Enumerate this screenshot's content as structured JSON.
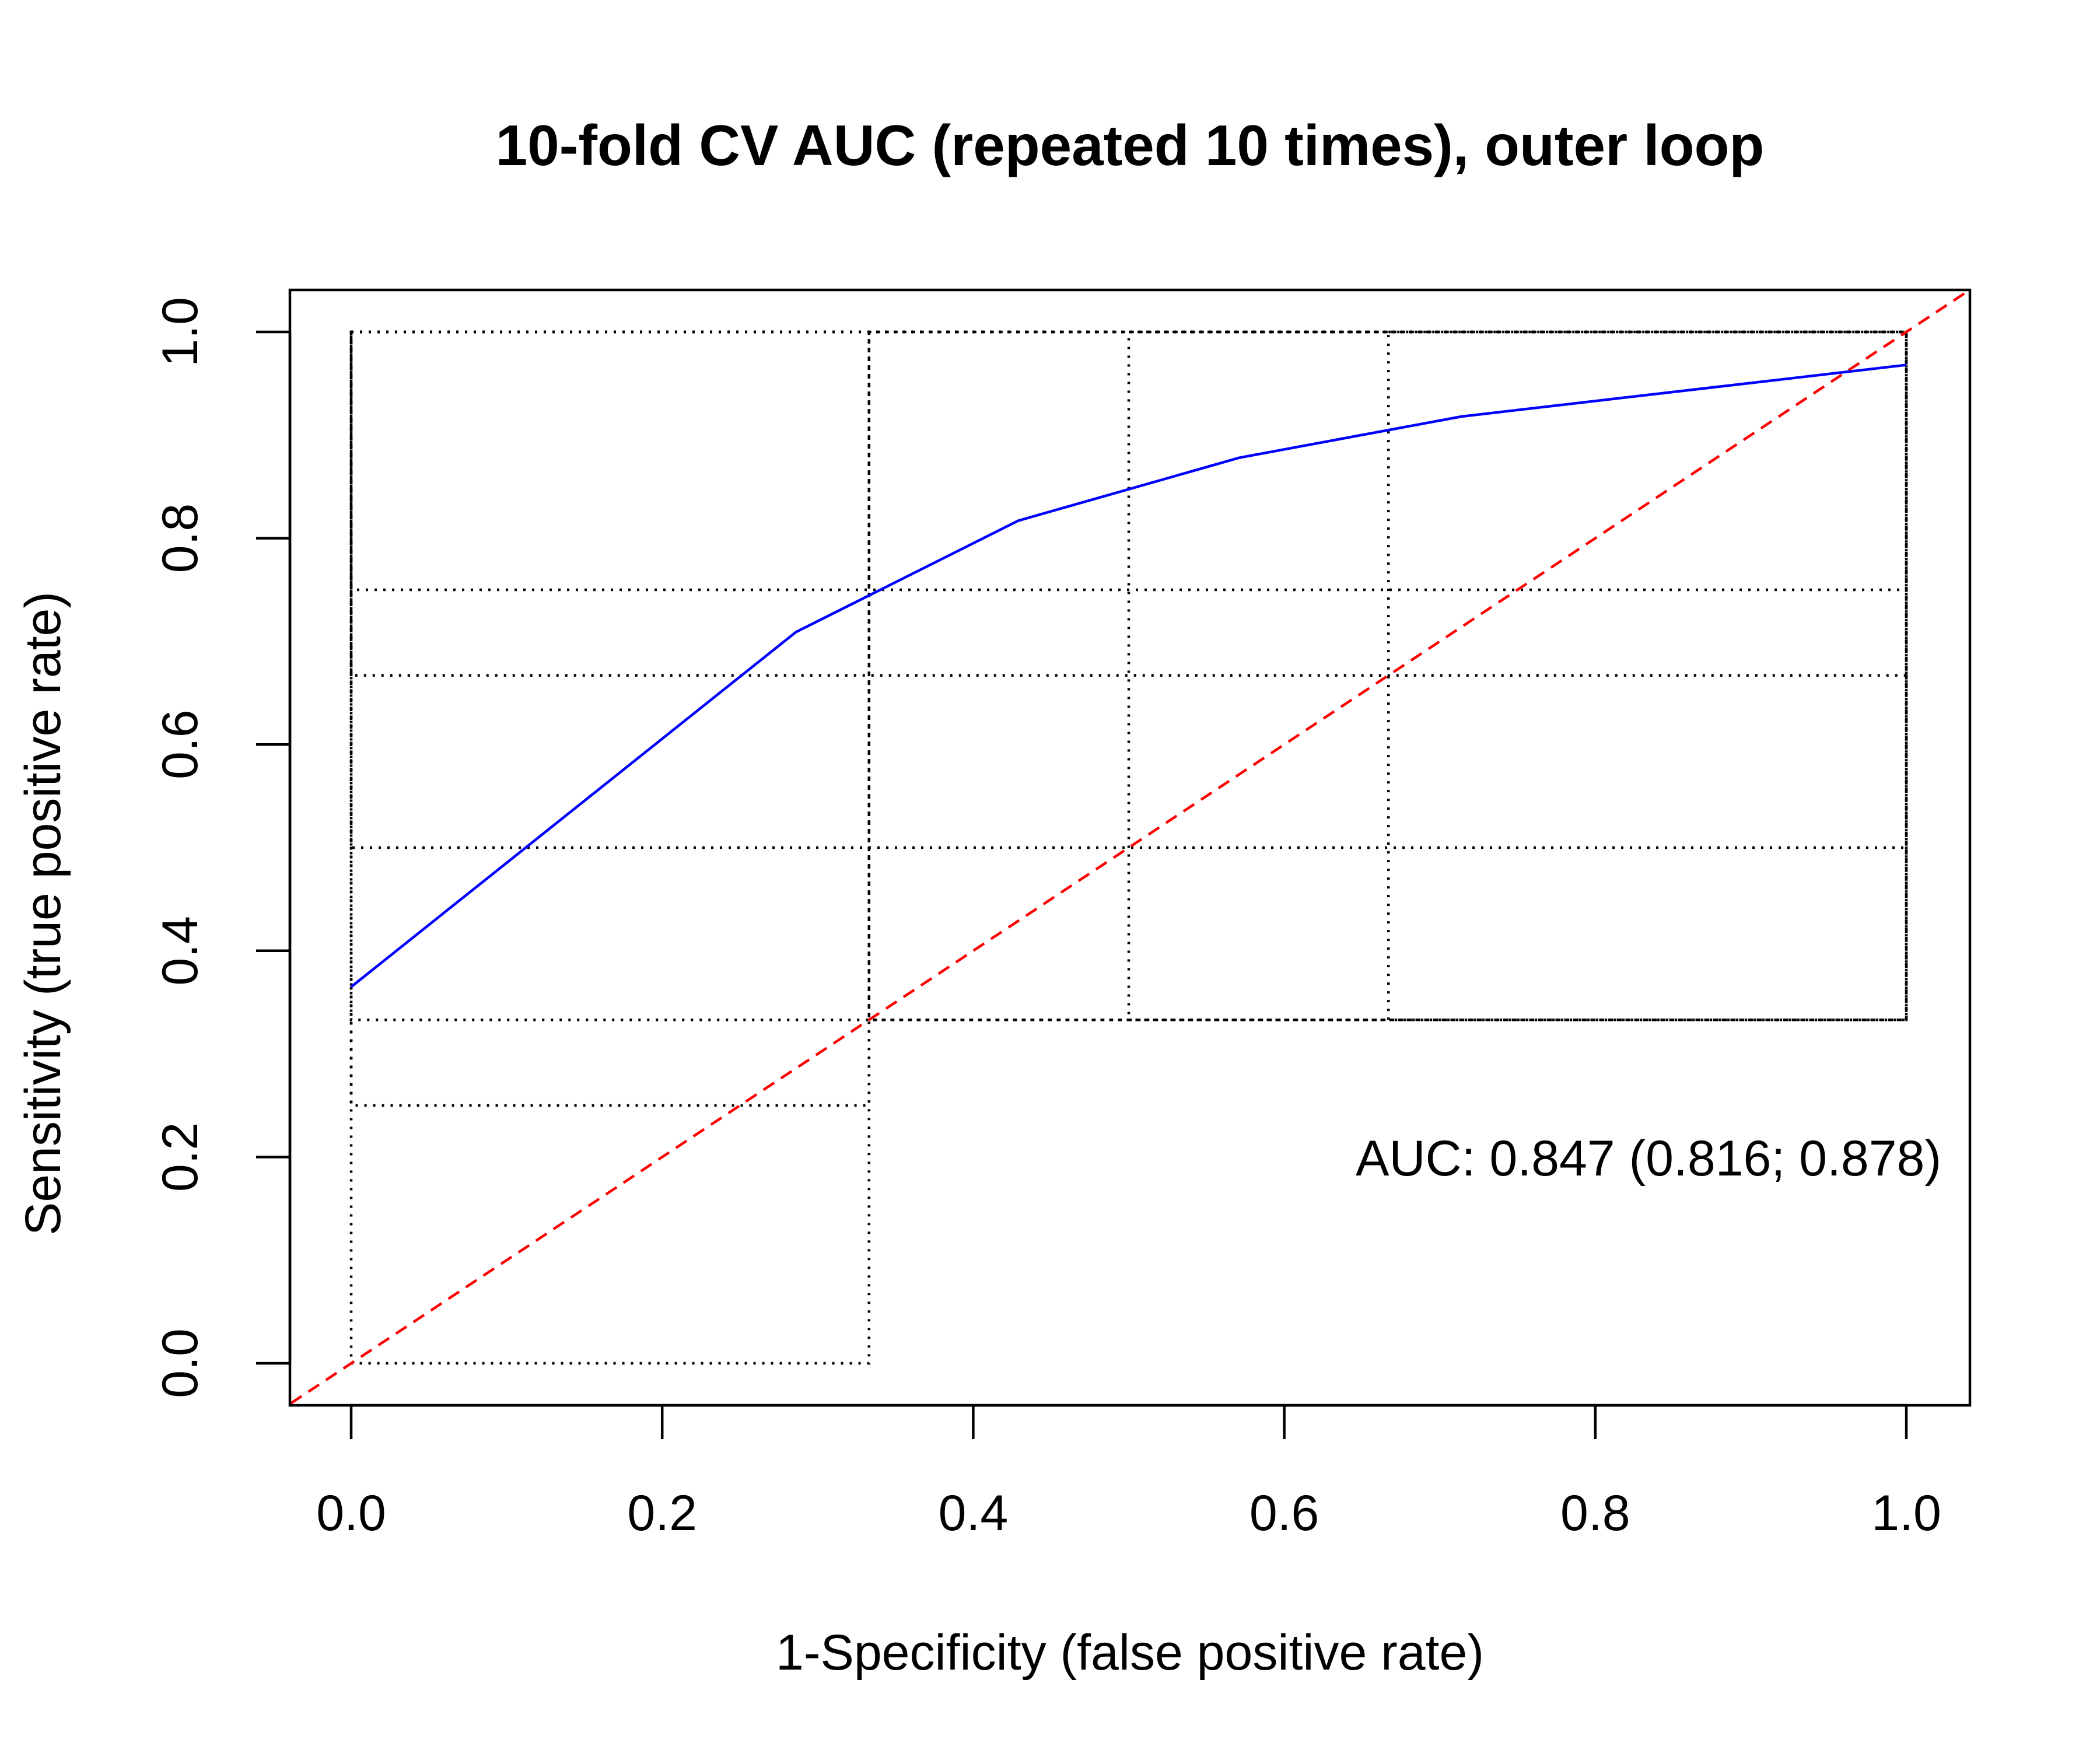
{
  "chart_data": {
    "type": "line",
    "title": "10-fold CV AUC (repeated 10 times), outer loop",
    "xlabel": "1-Specificity (false positive rate)",
    "ylabel": "Sensitivity (true positive rate)",
    "xlim": [
      0,
      1
    ],
    "ylim": [
      0,
      1
    ],
    "x_ticks": [
      "0.0",
      "0.2",
      "0.4",
      "0.6",
      "0.8",
      "1.0"
    ],
    "y_ticks": [
      "0.0",
      "0.2",
      "0.4",
      "0.6",
      "0.8",
      "1.0"
    ],
    "grid": false,
    "series": [
      {
        "color": "#0000ff",
        "x": [
          0.0,
          0.286,
          0.429,
          0.571,
          0.714,
          1.0
        ],
        "y": [
          0.365,
          0.709,
          0.817,
          0.878,
          0.918,
          0.968
        ]
      }
    ],
    "reference_line": {
      "color": "#ff0000",
      "x": [
        -0.05,
        1.05
      ],
      "y": [
        -0.05,
        1.05
      ]
    },
    "boxes": [
      {
        "x": [
          0.0,
          0.333
        ],
        "y": [
          0.0,
          1.0
        ]
      },
      {
        "x": [
          0.0,
          0.333
        ],
        "y": [
          0.25,
          1.0
        ]
      },
      {
        "x": [
          0.0,
          1.0
        ],
        "y": [
          0.333,
          1.0
        ]
      },
      {
        "x": [
          0.0,
          1.0
        ],
        "y": [
          0.5,
          1.0
        ]
      },
      {
        "x": [
          0.0,
          1.0
        ],
        "y": [
          0.667,
          1.0
        ]
      },
      {
        "x": [
          0.0,
          1.0
        ],
        "y": [
          0.75,
          1.0
        ]
      },
      {
        "x": [
          0.333,
          1.0
        ],
        "y": [
          0.333,
          1.0
        ]
      },
      {
        "x": [
          0.5,
          1.0
        ],
        "y": [
          0.333,
          1.0
        ]
      },
      {
        "x": [
          0.667,
          1.0
        ],
        "y": [
          0.333,
          1.0
        ]
      }
    ],
    "annotation": "AUC: 0.847 (0.816; 0.878)",
    "colors": {
      "curve": "#0000ff",
      "reference": "#ff0000",
      "boxes": "#000000"
    }
  }
}
